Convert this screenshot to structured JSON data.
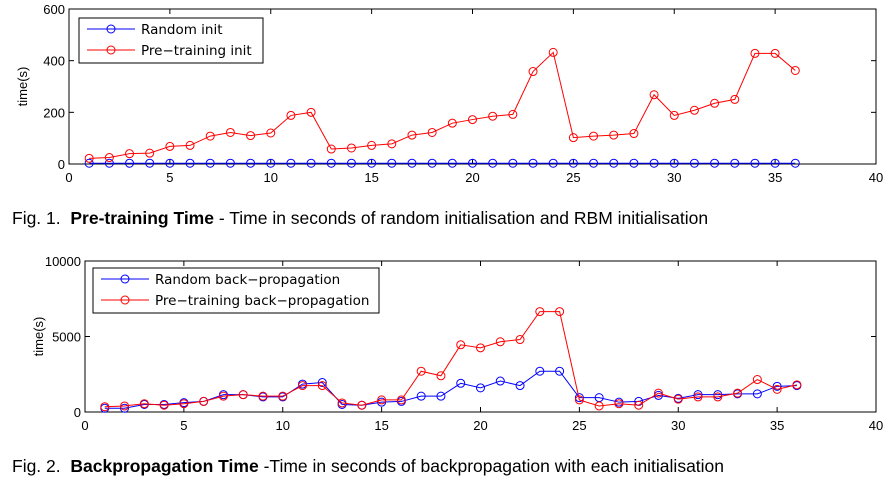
{
  "chart_data": [
    {
      "type": "line",
      "title": "",
      "xlabel": "",
      "ylabel": "time(s)",
      "xlim": [
        0,
        40
      ],
      "ylim": [
        0,
        600
      ],
      "xticks": [
        0,
        5,
        10,
        15,
        20,
        25,
        30,
        35,
        40
      ],
      "yticks": [
        0,
        200,
        400,
        600
      ],
      "grid": false,
      "legend": "top-left",
      "x": [
        1,
        2,
        3,
        4,
        5,
        6,
        7,
        8,
        9,
        10,
        11,
        12,
        13,
        14,
        15,
        16,
        17,
        18,
        19,
        20,
        21,
        22,
        23,
        24,
        25,
        26,
        27,
        28,
        29,
        30,
        31,
        32,
        33,
        34,
        35,
        36
      ],
      "series": [
        {
          "name": "Random init",
          "color": "#0000ff",
          "values": [
            3,
            3,
            3,
            3,
            3,
            3,
            3,
            3,
            3,
            3,
            3,
            3,
            3,
            3,
            3,
            3,
            3,
            3,
            3,
            3,
            3,
            3,
            3,
            3,
            3,
            3,
            3,
            3,
            3,
            3,
            3,
            3,
            3,
            3,
            3,
            3
          ]
        },
        {
          "name": "Pre−training init",
          "color": "#ff0000",
          "values": [
            22,
            25,
            40,
            42,
            68,
            72,
            108,
            122,
            110,
            120,
            188,
            200,
            58,
            62,
            72,
            78,
            112,
            122,
            158,
            172,
            185,
            192,
            358,
            432,
            102,
            108,
            112,
            118,
            268,
            188,
            208,
            235,
            250,
            428,
            428,
            362
          ]
        }
      ],
      "caption_prefix": "Fig. 1.",
      "caption_bold": "Pre-training Time",
      "caption_text": " - Time in seconds of random initialisation and RBM initialisation"
    },
    {
      "type": "line",
      "title": "",
      "xlabel": "",
      "ylabel": "time(s)",
      "xlim": [
        0,
        40
      ],
      "ylim": [
        0,
        10000
      ],
      "xticks": [
        0,
        5,
        10,
        15,
        20,
        25,
        30,
        35,
        40
      ],
      "yticks": [
        0,
        5000,
        10000
      ],
      "grid": false,
      "legend": "top-left",
      "x": [
        1,
        2,
        3,
        4,
        5,
        6,
        7,
        8,
        9,
        10,
        11,
        12,
        13,
        14,
        15,
        16,
        17,
        18,
        19,
        20,
        21,
        22,
        23,
        24,
        25,
        26,
        27,
        28,
        29,
        30,
        31,
        32,
        33,
        34,
        35,
        36
      ],
      "series": [
        {
          "name": "Random back−propagation",
          "color": "#0000ff",
          "values": [
            250,
            250,
            500,
            500,
            620,
            700,
            1150,
            1150,
            1000,
            1000,
            1850,
            1950,
            500,
            450,
            650,
            700,
            1050,
            1050,
            1900,
            1600,
            2050,
            1750,
            2700,
            2700,
            950,
            950,
            650,
            700,
            1100,
            900,
            1150,
            1150,
            1200,
            1200,
            1700,
            1750
          ]
        },
        {
          "name": "Pre−training back−propagation",
          "color": "#ff0000",
          "values": [
            350,
            400,
            550,
            450,
            550,
            700,
            1050,
            1150,
            1050,
            1050,
            1750,
            1750,
            600,
            450,
            800,
            800,
            2700,
            2400,
            4450,
            4250,
            4650,
            4800,
            6650,
            6650,
            800,
            400,
            550,
            450,
            1250,
            850,
            1000,
            1000,
            1250,
            2150,
            1500,
            1800
          ]
        }
      ],
      "caption_prefix": "Fig. 2.",
      "caption_bold": "Backpropagation Time",
      "caption_text": " -Time in seconds of backpropagation with each initialisation"
    }
  ]
}
